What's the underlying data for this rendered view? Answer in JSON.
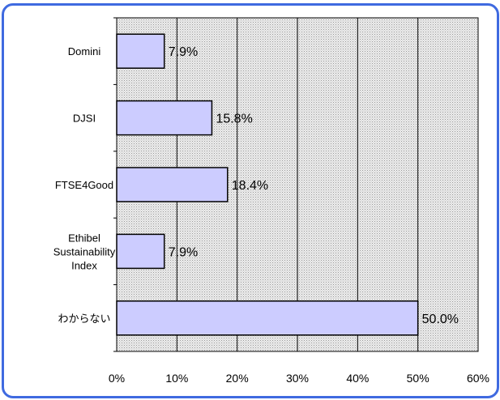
{
  "chart_data": {
    "type": "bar",
    "orientation": "horizontal",
    "categories": [
      [
        "Domini"
      ],
      [
        "DJSI"
      ],
      [
        "FTSE4Good"
      ],
      [
        "Ethibel",
        "Sustainability",
        "Index"
      ],
      [
        "わからない"
      ]
    ],
    "values": [
      7.9,
      15.8,
      18.4,
      7.9,
      50.0
    ],
    "data_labels": [
      "7.9%",
      "15.8%",
      "18.4%",
      "7.9%",
      "50.0%"
    ],
    "xlim": [
      0,
      60
    ],
    "xticks": [
      0,
      10,
      20,
      30,
      40,
      50,
      60
    ],
    "xtick_labels": [
      "0%",
      "10%",
      "20%",
      "30%",
      "40%",
      "50%",
      "60%"
    ],
    "title": "",
    "xlabel": "",
    "ylabel": "",
    "grid": "vertical",
    "legend": "none",
    "colors": {
      "bar_fill": "#ccccff",
      "bar_stroke": "#000000",
      "plot_background": "#e6e6e6",
      "frame_border": "#3f6ae0"
    }
  }
}
